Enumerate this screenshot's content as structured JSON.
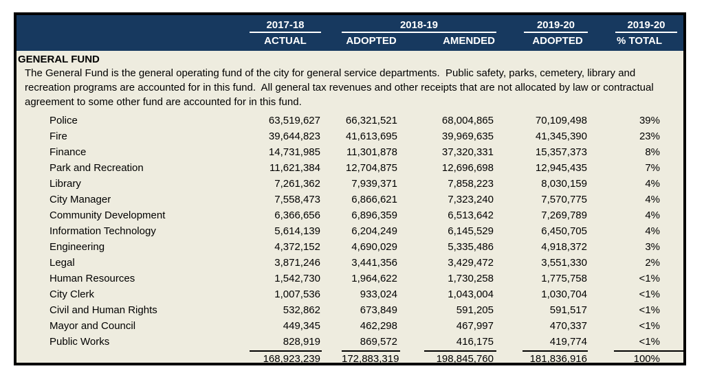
{
  "colors": {
    "header_bg": "#17395F",
    "body_bg": "#EEECDF",
    "page_bg": "#FFFFFF",
    "border": "#000000",
    "header_text": "#FFFFFF",
    "text": "#000000"
  },
  "table": {
    "header": {
      "year_groups": [
        {
          "year": "2017-18",
          "span": 1
        },
        {
          "year": "2018-19",
          "span": 2
        },
        {
          "year": "2019-20",
          "span": 1
        },
        {
          "year": "2019-20",
          "span": 1
        }
      ],
      "col_labels": [
        "ACTUAL",
        "ADOPTED",
        "AMENDED",
        "ADOPTED",
        "% TOTAL"
      ]
    },
    "section": {
      "title": "GENERAL FUND",
      "description": "The General Fund is the general operating fund of the city for general service departments.  Public safety, parks, cemetery, library and recreation programs are accounted for in this fund.  All general tax revenues and other receipts that are not allocated by law or contractual agreement to some other fund are accounted for in this fund."
    },
    "rows": [
      {
        "name": "Police",
        "values": [
          "63,519,627",
          "66,321,521",
          "68,004,865",
          "70,109,498",
          "39%"
        ]
      },
      {
        "name": "Fire",
        "values": [
          "39,644,823",
          "41,613,695",
          "39,969,635",
          "41,345,390",
          "23%"
        ]
      },
      {
        "name": "Finance",
        "values": [
          "14,731,985",
          "11,301,878",
          "37,320,331",
          "15,357,373",
          "8%"
        ]
      },
      {
        "name": "Park and Recreation",
        "values": [
          "11,621,384",
          "12,704,875",
          "12,696,698",
          "12,945,435",
          "7%"
        ]
      },
      {
        "name": "Library",
        "values": [
          "7,261,362",
          "7,939,371",
          "7,858,223",
          "8,030,159",
          "4%"
        ]
      },
      {
        "name": "City Manager",
        "values": [
          "7,558,473",
          "6,866,621",
          "7,323,240",
          "7,570,775",
          "4%"
        ]
      },
      {
        "name": "Community Development",
        "values": [
          "6,366,656",
          "6,896,359",
          "6,513,642",
          "7,269,789",
          "4%"
        ]
      },
      {
        "name": "Information Technology",
        "values": [
          "5,614,139",
          "6,204,249",
          "6,145,529",
          "6,450,705",
          "4%"
        ]
      },
      {
        "name": "Engineering",
        "values": [
          "4,372,152",
          "4,690,029",
          "5,335,486",
          "4,918,372",
          "3%"
        ]
      },
      {
        "name": "Legal",
        "values": [
          "3,871,246",
          "3,441,356",
          "3,429,472",
          "3,551,330",
          "2%"
        ]
      },
      {
        "name": "Human Resources",
        "values": [
          "1,542,730",
          "1,964,622",
          "1,730,258",
          "1,775,758",
          "<1%"
        ]
      },
      {
        "name": "City Clerk",
        "values": [
          "1,007,536",
          "933,024",
          "1,043,004",
          "1,030,704",
          "<1%"
        ]
      },
      {
        "name": "Civil and Human Rights",
        "values": [
          "532,862",
          "673,849",
          "591,205",
          "591,517",
          "<1%"
        ]
      },
      {
        "name": "Mayor and Council",
        "values": [
          "449,345",
          "462,298",
          "467,997",
          "470,337",
          "<1%"
        ]
      },
      {
        "name": "Public Works",
        "values": [
          "828,919",
          "869,572",
          "416,175",
          "419,774",
          "<1%"
        ]
      }
    ],
    "total": {
      "values": [
        "168,923,239",
        "172,883,319",
        "198,845,760",
        "181,836,916",
        "100%"
      ]
    }
  }
}
